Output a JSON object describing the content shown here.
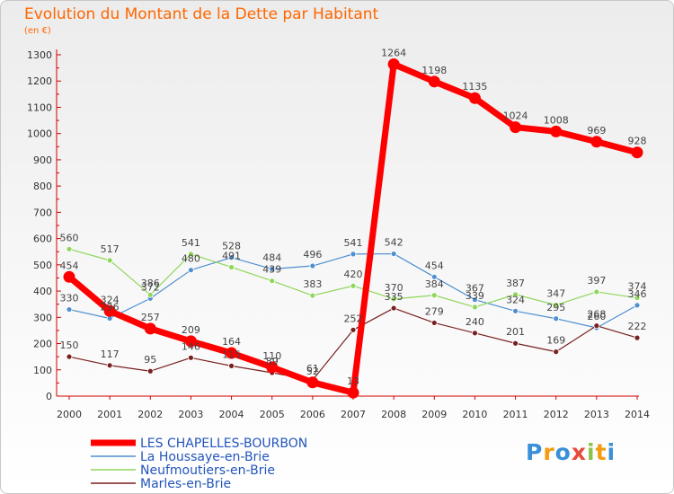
{
  "title": "Evolution du Montant de la Dette par Habitant",
  "unit_label": "(en €)",
  "logo": {
    "text": "Proxiti",
    "colors": [
      "#3a8fd9",
      "#f39c12",
      "#3a8fd9",
      "#e74c3c",
      "#8bc34a",
      "#f39c12",
      "#3a8fd9"
    ]
  },
  "chart_data": {
    "type": "line",
    "x": [
      "2000",
      "2001",
      "2002",
      "2003",
      "2004",
      "2005",
      "2006",
      "2007",
      "2008",
      "2009",
      "2010",
      "2011",
      "2012",
      "2013",
      "2014"
    ],
    "ylim": [
      0,
      1300
    ],
    "yticks": [
      0,
      100,
      200,
      300,
      400,
      500,
      600,
      700,
      800,
      900,
      1000,
      1100,
      1200,
      1300
    ],
    "grid": false,
    "legend_position": "bottom-left",
    "series": [
      {
        "name": "LES CHAPELLES-BOURBON",
        "color": "#ff0000",
        "emphasis": true,
        "values": [
          454,
          324,
          257,
          209,
          164,
          110,
          52,
          13,
          1264,
          1198,
          1135,
          1024,
          1008,
          969,
          928
        ],
        "labels": [
          "454",
          "324",
          "257",
          "209",
          "164",
          "110",
          "52",
          "13",
          "1264",
          "1198",
          "1135",
          "1024",
          "1008",
          "969",
          "928"
        ]
      },
      {
        "name": "La Houssaye-en-Brie",
        "color": "#4f8fcf",
        "values": [
          330,
          296,
          372,
          480,
          528,
          484,
          496,
          541,
          542,
          454,
          367,
          324,
          295,
          260,
          346
        ],
        "labels": [
          "330",
          "296",
          "372",
          "480",
          "528",
          "484",
          "496",
          "541",
          "542",
          "454",
          "367",
          "324",
          "295",
          "260",
          "346"
        ]
      },
      {
        "name": "Neufmoutiers-en-Brie",
        "color": "#8fd65a",
        "values": [
          560,
          517,
          386,
          541,
          491,
          439,
          383,
          420,
          370,
          384,
          339,
          387,
          347,
          397,
          374
        ],
        "labels": [
          "560",
          "517",
          "386",
          "541",
          "491",
          "439",
          "383",
          "420",
          "370",
          "384",
          "339",
          "387",
          "347",
          "397",
          "374"
        ]
      },
      {
        "name": "Marles-en-Brie",
        "color": "#7a1f1f",
        "values": [
          150,
          117,
          95,
          146,
          115,
          89,
          61,
          252,
          335,
          279,
          240,
          201,
          169,
          268,
          222
        ],
        "labels": [
          "150",
          "117",
          "95",
          "146",
          "115",
          "89",
          "61",
          "252",
          "335",
          "279",
          "240",
          "201",
          "169",
          "268",
          "222"
        ]
      }
    ]
  }
}
